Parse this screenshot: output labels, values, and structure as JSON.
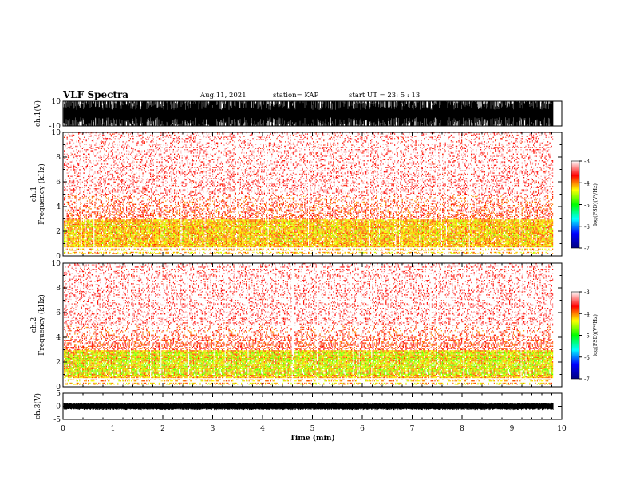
{
  "header": {
    "title": "VLF Spectra",
    "date": "Aug.11, 2021",
    "station": "station= KAP",
    "start": "start  UT =   23: 5  : 13"
  },
  "chart_data": [
    {
      "type": "line",
      "name": "ch1-waveform",
      "ylabel": "ch.1(V)",
      "ylim": [
        -10,
        10
      ],
      "yticks": [
        "10",
        "-10"
      ],
      "xlim": [
        0,
        10
      ],
      "trace_extent_min": 9.83,
      "description_values": "saturated waveform spanning roughly -10 to +10 V"
    },
    {
      "type": "heatmap",
      "name": "ch1-spectrogram",
      "ylabel": "ch.1\nFrequency (kHz)",
      "ylabel_lines": [
        "ch.1",
        "Frequency  (kHz)"
      ],
      "ylim": [
        0,
        10
      ],
      "yticks": [
        "0",
        "2",
        "4",
        "6",
        "8",
        "10"
      ],
      "xlim": [
        0,
        10
      ],
      "trace_extent_min": 9.83,
      "color_range": [
        -7,
        -3
      ]
    },
    {
      "type": "heatmap",
      "name": "ch2-spectrogram",
      "ylabel_lines": [
        "ch.2",
        "Frequency  (kHz)"
      ],
      "ylim": [
        0,
        10
      ],
      "yticks": [
        "0",
        "2",
        "4",
        "6",
        "8",
        "10"
      ],
      "xlim": [
        0,
        10
      ],
      "trace_extent_min": 9.83,
      "color_range": [
        -7,
        -3
      ]
    },
    {
      "type": "line",
      "name": "ch3-waveform",
      "ylabel": "ch.3(V)",
      "ylim": [
        -5,
        5
      ],
      "yticks": [
        "5",
        "0",
        "-5"
      ],
      "xlim": [
        0,
        10
      ],
      "xticks": [
        "0",
        "1",
        "2",
        "3",
        "4",
        "5",
        "6",
        "7",
        "8",
        "9",
        "10"
      ],
      "xlabel": "Time  (min)",
      "trace_extent_min": 9.83,
      "baseline_value": 0
    }
  ],
  "colorbar": {
    "label": "log(PSD)(V²/Hz)",
    "ticks": [
      "-3",
      "-4",
      "-5",
      "-6",
      "-7"
    ],
    "range": [
      -7,
      -3
    ]
  },
  "colors": {
    "axis": "#000000",
    "background": "#ffffff",
    "colormap": [
      "#000080",
      "#0000ff",
      "#00ffff",
      "#00ff00",
      "#ffff00",
      "#ff0000",
      "#ffffff"
    ]
  }
}
